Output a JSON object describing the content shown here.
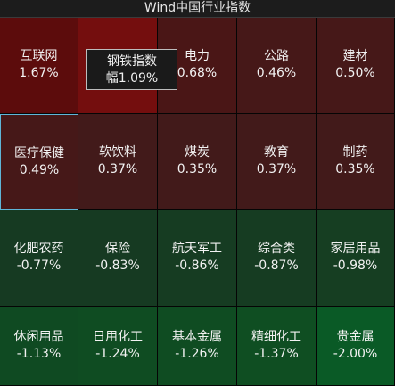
{
  "title": "Wind中国行业指数",
  "tooltip": {
    "line1": "钢铁指数",
    "line2": "幅1.09%"
  },
  "rows": [
    [
      {
        "name": "互联网",
        "change": "1.67%",
        "color": "#5c0c0c"
      },
      {
        "name": "",
        "change": "",
        "color": "#740e0e"
      },
      {
        "name": "电力",
        "change": "0.68%",
        "color": "#4a1616"
      },
      {
        "name": "公路",
        "change": "0.46%",
        "color": "#461818"
      },
      {
        "name": "建材",
        "change": "0.50%",
        "color": "#461818"
      }
    ],
    [
      {
        "name": "医疗保健",
        "change": "0.49%",
        "color": "#461818"
      },
      {
        "name": "软饮料",
        "change": "0.37%",
        "color": "#421a1a"
      },
      {
        "name": "煤炭",
        "change": "0.35%",
        "color": "#421a1a"
      },
      {
        "name": "教育",
        "change": "0.37%",
        "color": "#421a1a"
      },
      {
        "name": "制药",
        "change": "0.35%",
        "color": "#421a1a"
      }
    ],
    [
      {
        "name": "化肥农药",
        "change": "-0.77%",
        "color": "#163a22"
      },
      {
        "name": "保险",
        "change": "-0.83%",
        "color": "#163a22"
      },
      {
        "name": "航天军工",
        "change": "-0.86%",
        "color": "#163c22"
      },
      {
        "name": "综合类",
        "change": "-0.87%",
        "color": "#163c22"
      },
      {
        "name": "家居用品",
        "change": "-0.98%",
        "color": "#163e22"
      }
    ],
    [
      {
        "name": "休闲用品",
        "change": "-1.13%",
        "color": "#0f4a22"
      },
      {
        "name": "日用化工",
        "change": "-1.24%",
        "color": "#0f4c22"
      },
      {
        "name": "基本金属",
        "change": "-1.26%",
        "color": "#0f4c22"
      },
      {
        "name": "精细化工",
        "change": "-1.37%",
        "color": "#0f4e22"
      },
      {
        "name": "贵金属",
        "change": "-2.00%",
        "color": "#0a5a26"
      }
    ]
  ]
}
